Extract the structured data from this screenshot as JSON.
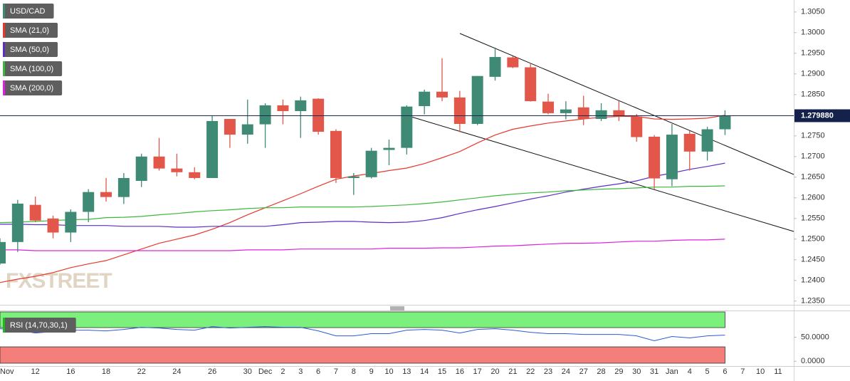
{
  "chart_data": [
    {
      "type": "candlestick",
      "name": "USD/CAD",
      "up_color": "#3e8a74",
      "down_color": "#e3574a",
      "categories": [
        "Nov",
        null,
        "12",
        null,
        "16",
        null,
        "18",
        null,
        "22",
        null,
        "24",
        null,
        "26",
        null,
        "30",
        "Dec",
        "2",
        "3",
        "6",
        "7",
        "8",
        "9",
        "10",
        "13",
        "14",
        "15",
        "16",
        "17",
        "20",
        "21",
        "22",
        "23",
        "24",
        "27",
        "28",
        "29",
        "30",
        "31",
        "Jan",
        "4",
        "5",
        "6",
        "7",
        "10",
        "11"
      ],
      "open": [
        1.2441,
        1.2493,
        1.2583,
        1.255,
        1.2516,
        1.2566,
        1.2614,
        1.2602,
        1.2641,
        1.27,
        1.2671,
        1.2662,
        1.2648,
        1.2791,
        1.2753,
        1.2778,
        1.2824,
        1.281,
        1.284,
        1.2762,
        1.2648,
        1.265,
        1.2716,
        1.2721,
        1.2822,
        1.2857,
        1.2843,
        1.2779,
        1.2893,
        1.294,
        1.2916,
        1.2833,
        1.2805,
        1.2819,
        1.2791,
        1.2812,
        1.2797,
        1.2748,
        1.2645,
        1.2755,
        1.2712,
        1.2766,
        null,
        null,
        null
      ],
      "high": [
        1.2502,
        1.2595,
        1.2603,
        1.2557,
        1.2572,
        1.2621,
        1.2648,
        1.266,
        1.2707,
        1.2745,
        1.2707,
        1.2674,
        1.2798,
        1.2791,
        1.2838,
        1.2829,
        1.2838,
        1.2845,
        1.2841,
        1.2766,
        1.266,
        1.2721,
        1.2741,
        1.2824,
        1.2862,
        1.2938,
        1.2859,
        1.2895,
        1.2964,
        1.2943,
        1.2926,
        1.2852,
        1.2834,
        1.2847,
        1.2829,
        1.2834,
        1.2803,
        1.2752,
        1.2779,
        1.2762,
        1.2772,
        1.2812,
        null,
        null,
        null
      ],
      "low": [
        1.2438,
        1.2469,
        1.2541,
        1.2502,
        1.2493,
        1.2541,
        1.2591,
        1.2585,
        1.2626,
        1.2666,
        1.2652,
        1.2645,
        1.2648,
        1.2721,
        1.2731,
        1.2721,
        1.2778,
        1.2745,
        1.2753,
        1.2636,
        1.2607,
        1.2647,
        1.2679,
        1.2705,
        1.2802,
        1.2834,
        1.2759,
        1.2776,
        1.2884,
        1.2914,
        1.2833,
        1.2802,
        1.279,
        1.2776,
        1.2786,
        1.2786,
        1.2736,
        1.2621,
        1.2628,
        1.2666,
        1.269,
        1.2752,
        null,
        null,
        null
      ],
      "close": [
        1.2493,
        1.2586,
        1.2545,
        1.2516,
        1.2566,
        1.2614,
        1.2602,
        1.2648,
        1.27,
        1.2671,
        1.2662,
        1.2648,
        1.2786,
        1.2753,
        1.2778,
        1.2824,
        1.281,
        1.2836,
        1.276,
        1.2648,
        1.2652,
        1.2714,
        1.2721,
        1.2821,
        1.2857,
        1.2843,
        1.2779,
        1.2895,
        1.2941,
        1.2916,
        1.2834,
        1.2805,
        1.2814,
        1.2791,
        1.2812,
        1.2797,
        1.2747,
        1.2647,
        1.2753,
        1.2712,
        1.2766,
        1.27988,
        null,
        null,
        null
      ],
      "series": [
        {
          "name": "SMA (21,0)",
          "color": "#e8382c",
          "values": [
            1.2395,
            1.2403,
            1.241,
            1.2419,
            1.2431,
            1.244,
            1.2448,
            1.2462,
            1.2476,
            1.249,
            1.25,
            1.251,
            1.2524,
            1.254,
            1.2559,
            1.2576,
            1.2593,
            1.261,
            1.2628,
            1.2645,
            1.2653,
            1.2659,
            1.2666,
            1.2672,
            1.2683,
            1.2697,
            1.2712,
            1.2733,
            1.2752,
            1.2766,
            1.2774,
            1.2781,
            1.2786,
            1.2791,
            1.2795,
            1.2797,
            1.2797,
            1.2791,
            1.279,
            1.2791,
            1.2793,
            1.28,
            null,
            null,
            null
          ]
        },
        {
          "name": "SMA (50,0)",
          "color": "#5b2fc4",
          "values": [
            1.2536,
            1.2536,
            1.2535,
            1.2535,
            1.2533,
            1.2533,
            1.2533,
            1.2531,
            1.2531,
            1.2531,
            1.2529,
            1.2529,
            1.2531,
            1.2531,
            1.2531,
            1.2531,
            1.2535,
            1.254,
            1.2541,
            1.2543,
            1.2543,
            1.2541,
            1.254,
            1.2541,
            1.2545,
            1.2552,
            1.2562,
            1.2571,
            1.2579,
            1.2588,
            1.2597,
            1.2605,
            1.2614,
            1.2621,
            1.2628,
            1.2634,
            1.2641,
            1.2652,
            1.266,
            1.2669,
            1.2676,
            1.2684,
            null,
            null,
            null
          ]
        },
        {
          "name": "SMA (100,0)",
          "color": "#3cb83c",
          "values": [
            1.254,
            1.2541,
            1.2543,
            1.2545,
            1.2547,
            1.2548,
            1.2552,
            1.2553,
            1.2555,
            1.2559,
            1.2562,
            1.2566,
            1.2569,
            1.2571,
            1.2574,
            1.2576,
            1.2576,
            1.2578,
            1.2578,
            1.2578,
            1.2578,
            1.2579,
            1.2581,
            1.2583,
            1.2586,
            1.259,
            1.2595,
            1.26,
            1.2605,
            1.2609,
            1.2612,
            1.2614,
            1.2617,
            1.2619,
            1.2621,
            1.2622,
            1.2624,
            1.2626,
            1.2626,
            1.2628,
            1.2628,
            1.2629,
            null,
            null,
            null
          ]
        },
        {
          "name": "SMA (200,0)",
          "color": "#e020e0",
          "values": [
            1.2474,
            1.2474,
            1.2472,
            1.2472,
            1.2472,
            1.2472,
            1.2472,
            1.2472,
            1.2472,
            1.2472,
            1.2472,
            1.2472,
            1.2472,
            1.2472,
            1.2474,
            1.2474,
            1.2474,
            1.2476,
            1.2476,
            1.2476,
            1.2476,
            1.2476,
            1.2478,
            1.2478,
            1.2478,
            1.2479,
            1.2479,
            1.2481,
            1.2483,
            1.2484,
            1.2486,
            1.2488,
            1.249,
            1.249,
            1.2491,
            1.2493,
            1.2495,
            1.2495,
            1.2497,
            1.2498,
            1.2498,
            1.25,
            null,
            null,
            null
          ]
        }
      ],
      "ylim": [
        1.2341,
        1.3079
      ],
      "yticks": [
        {
          "value": 1.235,
          "label": "1.2350"
        },
        {
          "value": 1.24,
          "label": "1.2400"
        },
        {
          "value": 1.245,
          "label": "1.2450"
        },
        {
          "value": 1.25,
          "label": "1.2500"
        },
        {
          "value": 1.255,
          "label": "1.2550"
        },
        {
          "value": 1.26,
          "label": "1.2600"
        },
        {
          "value": 1.265,
          "label": "1.2650"
        },
        {
          "value": 1.27,
          "label": "1.2700"
        },
        {
          "value": 1.275,
          "label": "1.2750"
        },
        {
          "value": 1.28,
          "label": "1.2800"
        },
        {
          "value": 1.285,
          "label": "1.2850"
        },
        {
          "value": 1.29,
          "label": "1.2900"
        },
        {
          "value": 1.295,
          "label": "1.2950"
        },
        {
          "value": 1.3,
          "label": "1.3000"
        },
        {
          "value": 1.305,
          "label": "1.3050"
        }
      ],
      "last_price": {
        "value": 1.27988,
        "label": "1.279880"
      },
      "watermark": "FXSTREET"
    },
    {
      "type": "line",
      "series": [
        {
          "name": "RSI (14,70,30,1)",
          "color": "#2a5bd7",
          "values": [
            67.6,
            64.7,
            58.8,
            61.8,
            64.7,
            64.7,
            63.2,
            66.2,
            70.6,
            69.1,
            66.2,
            64.7,
            72.1,
            69.1,
            70.6,
            72.1,
            70.6,
            70.6,
            63.2,
            52.9,
            52.9,
            57.4,
            57.4,
            64.7,
            66.2,
            64.7,
            58.8,
            66.2,
            67.6,
            64.7,
            60.3,
            57.4,
            57.4,
            55.9,
            55.9,
            55.9,
            52.9,
            42.6,
            51.5,
            48.5,
            52.9,
            54.4,
            null,
            null,
            null
          ]
        }
      ],
      "ylim": [
        -11.4,
        104.1
      ],
      "yticks": [
        {
          "value": 50,
          "label": "50.0000"
        },
        {
          "value": 0,
          "label": "0.0000"
        }
      ],
      "overbought": 70,
      "oversold": 30,
      "overbought_color": "#7cf07c",
      "oversold_color": "#f47f7a"
    }
  ]
}
